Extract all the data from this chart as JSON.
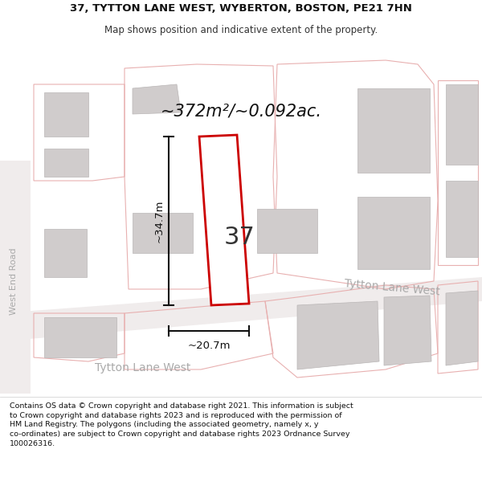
{
  "title_line1": "37, TYTTON LANE WEST, WYBERTON, BOSTON, PE21 7HN",
  "title_line2": "Map shows position and indicative extent of the property.",
  "footer": "Contains OS data © Crown copyright and database right 2021. This information is subject to Crown copyright and database rights 2023 and is reproduced with the permission of HM Land Registry. The polygons (including the associated geometry, namely x, y co-ordinates) are subject to Crown copyright and database rights 2023 Ordnance Survey 100026316.",
  "area_label": "~372m²/~0.092ac.",
  "dim_height": "~34.7m",
  "dim_width": "~20.7m",
  "number_label": "37",
  "road_label_bottom": "Tytton Lane West",
  "road_label_right": "Tytton Lane West",
  "road_label_left": "West End Road",
  "plot_outline_color": "#cc0000",
  "building_color": "#d0cccc",
  "building_edge_color": "#bab6b6",
  "road_fill_color": "#f0ecec",
  "plot_bg_color": "#f5f0f0",
  "road_line_color": "#e8b0b0",
  "dim_line_color": "#111111",
  "road_text_color": "#aaaaaa",
  "white": "#ffffff"
}
